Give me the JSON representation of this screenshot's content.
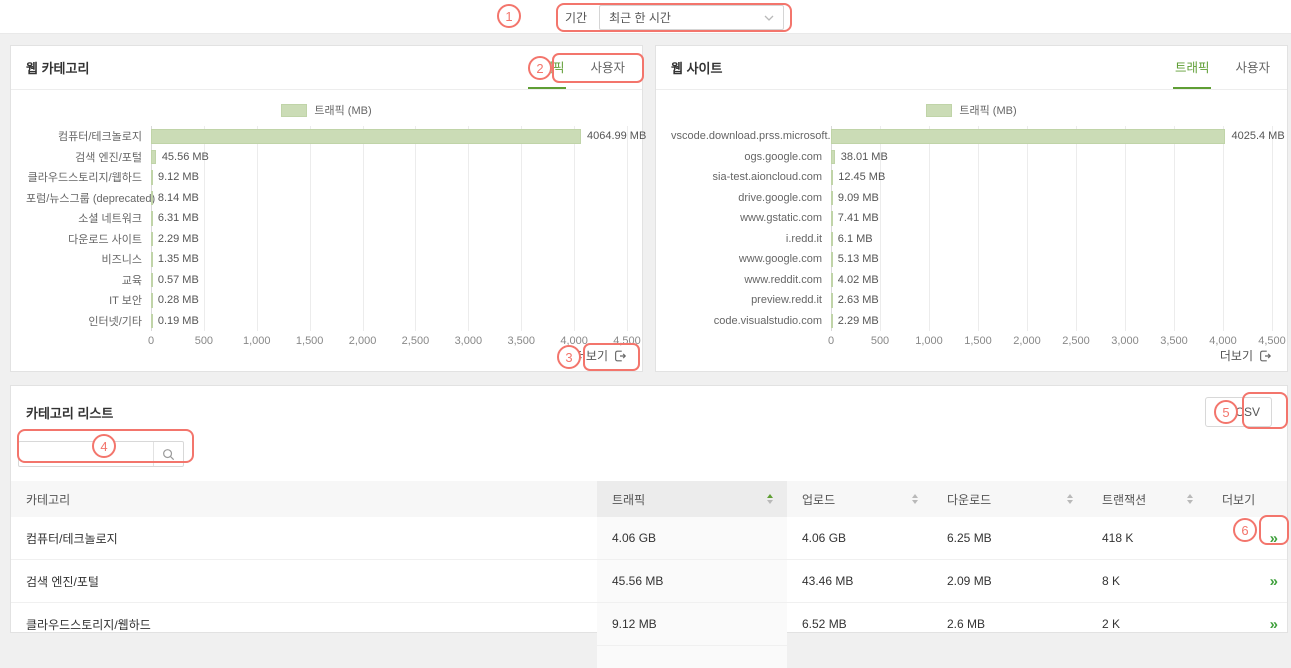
{
  "colors": {
    "accent_green": "#5f9e34",
    "bar_fill": "#cbdcb6",
    "annotation_red": "#f3756c"
  },
  "toolbar": {
    "period_label": "기간",
    "period_value": "최근 한 시간"
  },
  "panels": {
    "web_category": {
      "title": "웹 카테고리",
      "tabs": [
        {
          "label": "트래픽",
          "active": true
        },
        {
          "label": "사용자",
          "active": false
        }
      ],
      "more_label": "더보기"
    },
    "web_site": {
      "title": "웹 사이트",
      "tabs": [
        {
          "label": "트래픽",
          "active": true
        },
        {
          "label": "사용자",
          "active": false
        }
      ],
      "more_label": "더보기"
    },
    "category_list": {
      "title": "카테고리 리스트",
      "csv_button_label": "CSV",
      "search_value": ""
    }
  },
  "chart_data": [
    {
      "type": "bar",
      "orientation": "horizontal",
      "title": "웹 카테고리 트래픽",
      "legend": "트래픽 (MB)",
      "categories": [
        "컴퓨터/테크놀로지",
        "검색 엔진/포털",
        "클라우드스토리지/웹하드",
        "포럼/뉴스그룹 (deprecated)",
        "소셜 네트워크",
        "다운로드 사이트",
        "비즈니스",
        "교육",
        "IT 보안",
        "인터넷/기타"
      ],
      "values": [
        4064.99,
        45.56,
        9.12,
        8.14,
        6.31,
        2.29,
        1.35,
        0.57,
        0.28,
        0.19
      ],
      "value_labels": [
        "4064.99 MB",
        "45.56 MB",
        "9.12 MB",
        "8.14 MB",
        "6.31 MB",
        "2.29 MB",
        "1.35 MB",
        "0.57 MB",
        "0.28 MB",
        "0.19 MB"
      ],
      "xlim": [
        0,
        4500
      ],
      "xticks": [
        "0",
        "500",
        "1,000",
        "1,500",
        "2,000",
        "2,500",
        "3,000",
        "3,500",
        "4,000",
        "4,500"
      ],
      "grid": true,
      "legend_position": "top-center"
    },
    {
      "type": "bar",
      "orientation": "horizontal",
      "title": "웹 사이트 트래픽",
      "legend": "트래픽 (MB)",
      "categories": [
        "vscode.download.prss.microsoft.com",
        "ogs.google.com",
        "sia-test.aioncloud.com",
        "drive.google.com",
        "www.gstatic.com",
        "i.redd.it",
        "www.google.com",
        "www.reddit.com",
        "preview.redd.it",
        "code.visualstudio.com"
      ],
      "values": [
        4025.4,
        38.01,
        12.45,
        9.09,
        7.41,
        6.1,
        5.13,
        4.02,
        2.63,
        2.29
      ],
      "value_labels": [
        "4025.4 MB",
        "38.01 MB",
        "12.45 MB",
        "9.09 MB",
        "7.41 MB",
        "6.1 MB",
        "5.13 MB",
        "4.02 MB",
        "2.63 MB",
        "2.29 MB"
      ],
      "xlim": [
        0,
        4500
      ],
      "xticks": [
        "0",
        "500",
        "1,000",
        "1,500",
        "2,000",
        "2,500",
        "3,000",
        "3,500",
        "4,000",
        "4,500"
      ],
      "grid": true,
      "legend_position": "top-center"
    }
  ],
  "table": {
    "columns": [
      {
        "key": "category",
        "label": "카테고리",
        "sortable": false
      },
      {
        "key": "traffic",
        "label": "트래픽",
        "sortable": true,
        "sorted": "asc"
      },
      {
        "key": "upload",
        "label": "업로드",
        "sortable": true,
        "sorted": null
      },
      {
        "key": "download",
        "label": "다운로드",
        "sortable": true,
        "sorted": null
      },
      {
        "key": "transaction",
        "label": "트랜잭션",
        "sortable": true,
        "sorted": null
      },
      {
        "key": "more",
        "label": "더보기",
        "sortable": false
      }
    ],
    "rows": [
      {
        "category": "컴퓨터/테크놀로지",
        "traffic": "4.06 GB",
        "upload": "4.06 GB",
        "download": "6.25 MB",
        "transaction": "418 K",
        "more": "»"
      },
      {
        "category": "검색 엔진/포털",
        "traffic": "45.56 MB",
        "upload": "43.46 MB",
        "download": "2.09 MB",
        "transaction": "8 K",
        "more": "»"
      },
      {
        "category": "클라우드스토리지/웹하드",
        "traffic": "9.12 MB",
        "upload": "6.52 MB",
        "download": "2.6 MB",
        "transaction": "2 K",
        "more": "»"
      }
    ]
  },
  "annotations": [
    "1",
    "2",
    "3",
    "4",
    "5",
    "6"
  ]
}
